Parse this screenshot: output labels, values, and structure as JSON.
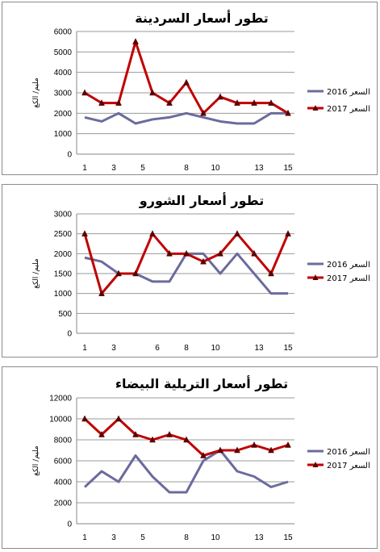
{
  "chart_data": [
    {
      "type": "line",
      "title": "تطور أسعار السردينة",
      "ylabel": "مليم/ الكغ",
      "xlabel": "",
      "ylim": [
        0,
        6000
      ],
      "yticks": [
        "0",
        "1000",
        "2000",
        "3000",
        "4000",
        "5000",
        "6000"
      ],
      "xticks": [
        "1",
        "3",
        "5",
        "8",
        "10",
        "13",
        "15"
      ],
      "x": [
        1,
        2,
        3,
        4,
        5,
        6,
        7,
        8,
        9,
        10,
        11,
        12,
        13,
        14,
        15
      ],
      "grid": "horizontal",
      "legend": "right",
      "series": [
        {
          "name": "السعر 2016",
          "color": "#6b6b9e",
          "marker": "none",
          "values": [
            1800,
            1600,
            2000,
            1500,
            1700,
            1800,
            2000,
            1800,
            1600,
            1500,
            1500,
            2000,
            2000,
            null,
            null
          ]
        },
        {
          "name": "السعر 2017",
          "color": "#c00000",
          "marker": "triangle",
          "values": [
            3000,
            2500,
            2500,
            5500,
            3000,
            2500,
            3500,
            2000,
            2800,
            2500,
            2500,
            2500,
            2000,
            null,
            null
          ]
        }
      ]
    },
    {
      "type": "line",
      "title": "تطور أسعار الشورو",
      "ylabel": "مليم/ الكغ",
      "xlabel": "",
      "ylim": [
        0,
        3000
      ],
      "yticks": [
        "0",
        "500",
        "1000",
        "1500",
        "2000",
        "2500",
        "3000"
      ],
      "xticks": [
        "1",
        "3",
        "6",
        "8",
        "10",
        "13",
        "15"
      ],
      "x": [
        1,
        2,
        3,
        4,
        5,
        6,
        7,
        8,
        9,
        10,
        11,
        12,
        13,
        14,
        15
      ],
      "grid": "horizontal",
      "legend": "right",
      "series": [
        {
          "name": "السعر 2016",
          "color": "#6b6b9e",
          "marker": "none",
          "values": [
            1900,
            1800,
            1500,
            1500,
            1300,
            1300,
            2000,
            2000,
            1500,
            2000,
            1500,
            1000,
            1000,
            null,
            null
          ]
        },
        {
          "name": "السعر 2017",
          "color": "#c00000",
          "marker": "triangle",
          "values": [
            2500,
            1000,
            1500,
            1500,
            2500,
            2000,
            2000,
            1800,
            2000,
            2500,
            2000,
            1500,
            2500,
            null,
            null
          ]
        }
      ]
    },
    {
      "type": "line",
      "title": "تطور أسعار التريلية البيضاء",
      "ylabel": "مليم/ الكغ",
      "xlabel": "",
      "ylim": [
        0,
        12000
      ],
      "yticks": [
        "0",
        "2000",
        "4000",
        "6000",
        "8000",
        "10000",
        "12000"
      ],
      "xticks": [
        "1",
        "3",
        "5",
        "8",
        "10",
        "13",
        "15"
      ],
      "x": [
        1,
        2,
        3,
        4,
        5,
        6,
        7,
        8,
        9,
        10,
        11,
        12,
        13,
        14,
        15
      ],
      "grid": "horizontal",
      "legend": "right",
      "series": [
        {
          "name": "السعر 2016",
          "color": "#6b6b9e",
          "marker": "none",
          "values": [
            3500,
            5000,
            4000,
            6500,
            4500,
            3000,
            3000,
            6000,
            7000,
            5000,
            4500,
            3500,
            4000,
            null,
            null
          ]
        },
        {
          "name": "السعر 2017",
          "color": "#c00000",
          "marker": "triangle",
          "values": [
            10000,
            8500,
            10000,
            8500,
            8000,
            8500,
            8000,
            6500,
            7000,
            7000,
            7500,
            7000,
            7500,
            null,
            null
          ]
        }
      ]
    }
  ]
}
